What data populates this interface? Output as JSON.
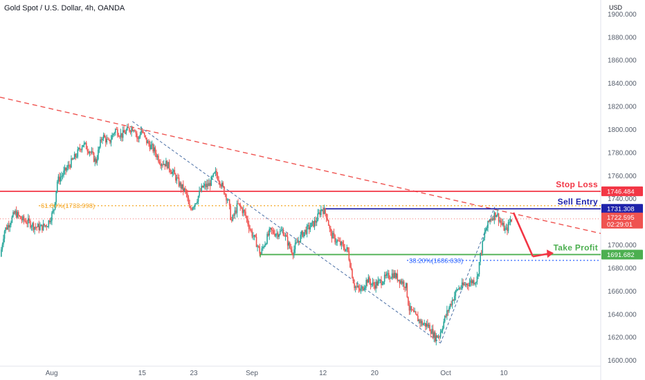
{
  "header": {
    "title": "Gold Spot / U.S. Dollar, 4h, OANDA",
    "currency": "USD"
  },
  "colors": {
    "up": "#26a69a",
    "down": "#ef5350",
    "stop": "#f23645",
    "entry": "#1e22aa",
    "profit": "#4caf50",
    "fib_upper": "#f5a623",
    "fib_lower": "#2962ff",
    "trend": "#ef5350",
    "channel": "#4a6fa5"
  },
  "chart_data": {
    "type": "candlestick",
    "title": "Gold Spot / U.S. Dollar, 4h, OANDA",
    "ylabel": "USD",
    "ylim": [
      1595,
      1905
    ],
    "yticks": [
      "1600.000",
      "1620.000",
      "1640.000",
      "1660.000",
      "1680.000",
      "1700.000",
      "1720.000",
      "1740.000",
      "1760.000",
      "1780.000",
      "1800.000",
      "1820.000",
      "1840.000",
      "1860.000",
      "1880.000",
      "1900.000"
    ],
    "xticks": [
      {
        "label": "Aug",
        "d": 0
      },
      {
        "label": "15",
        "d": 14
      },
      {
        "label": "23",
        "d": 22
      },
      {
        "label": "Sep",
        "d": 31
      },
      {
        "label": "12",
        "d": 42
      },
      {
        "label": "20",
        "d": 50
      },
      {
        "label": "Oct",
        "d": 61
      },
      {
        "label": "10",
        "d": 70
      }
    ],
    "xlim": [
      -8,
      85
    ],
    "price_path": [
      [
        -7.8,
        1690
      ],
      [
        -7.2,
        1712
      ],
      [
        -6.5,
        1718
      ],
      [
        -5.5,
        1728
      ],
      [
        -4.5,
        1722
      ],
      [
        -3.5,
        1720
      ],
      [
        -2.5,
        1716
      ],
      [
        -1.5,
        1715
      ],
      [
        -0.5,
        1718
      ],
      [
        0.5,
        1730
      ],
      [
        1.0,
        1755
      ],
      [
        2.0,
        1762
      ],
      [
        3.0,
        1770
      ],
      [
        4.0,
        1778
      ],
      [
        5.0,
        1788
      ],
      [
        6.0,
        1782
      ],
      [
        7.0,
        1772
      ],
      [
        8.0,
        1795
      ],
      [
        9.0,
        1788
      ],
      [
        10.0,
        1800
      ],
      [
        11.0,
        1795
      ],
      [
        12.0,
        1800
      ],
      [
        13.0,
        1802
      ],
      [
        13.5,
        1790
      ],
      [
        14.0,
        1800
      ],
      [
        14.8,
        1790
      ],
      [
        16.0,
        1782
      ],
      [
        17.0,
        1772
      ],
      [
        18.0,
        1770
      ],
      [
        19.0,
        1762
      ],
      [
        20.0,
        1752
      ],
      [
        21.0,
        1745
      ],
      [
        21.5,
        1730
      ],
      [
        22.5,
        1738
      ],
      [
        23.5,
        1750
      ],
      [
        24.5,
        1752
      ],
      [
        25.5,
        1762
      ],
      [
        26.0,
        1758
      ],
      [
        27.0,
        1745
      ],
      [
        27.5,
        1738
      ],
      [
        28.0,
        1720
      ],
      [
        29.0,
        1735
      ],
      [
        30.0,
        1728
      ],
      [
        31.0,
        1712
      ],
      [
        32.0,
        1700
      ],
      [
        32.5,
        1692
      ],
      [
        33.0,
        1700
      ],
      [
        34.0,
        1712
      ],
      [
        35.0,
        1710
      ],
      [
        36.0,
        1712
      ],
      [
        37.0,
        1698
      ],
      [
        37.5,
        1694
      ],
      [
        38.0,
        1700
      ],
      [
        39.0,
        1710
      ],
      [
        40.0,
        1715
      ],
      [
        41.0,
        1720
      ],
      [
        42.0,
        1732
      ],
      [
        42.8,
        1725
      ],
      [
        43.3,
        1710
      ],
      [
        44.0,
        1705
      ],
      [
        45.0,
        1700
      ],
      [
        46.0,
        1695
      ],
      [
        46.5,
        1680
      ],
      [
        47.0,
        1665
      ],
      [
        48.0,
        1660
      ],
      [
        49.0,
        1670
      ],
      [
        50.0,
        1665
      ],
      [
        51.0,
        1668
      ],
      [
        52.0,
        1672
      ],
      [
        53.0,
        1675
      ],
      [
        54.0,
        1670
      ],
      [
        55.0,
        1665
      ],
      [
        55.5,
        1645
      ],
      [
        56.5,
        1638
      ],
      [
        57.5,
        1632
      ],
      [
        58.5,
        1630
      ],
      [
        59.5,
        1620
      ],
      [
        60.2,
        1622
      ],
      [
        61.0,
        1636
      ],
      [
        62.0,
        1650
      ],
      [
        63.0,
        1662
      ],
      [
        64.0,
        1665
      ],
      [
        65.0,
        1668
      ],
      [
        66.0,
        1670
      ],
      [
        66.5,
        1690
      ],
      [
        67.2,
        1710
      ],
      [
        68.0,
        1722
      ],
      [
        69.0,
        1728
      ],
      [
        69.8,
        1718
      ],
      [
        70.5,
        1712
      ],
      [
        71.2,
        1722
      ]
    ],
    "levels": [
      {
        "label": "Stop Loss",
        "value": "1746.484",
        "price": 1746.484
      },
      {
        "label": "Sell Entry",
        "value": "1731.308",
        "price": 1731.308
      },
      {
        "label": "Take Profit",
        "value": "1691.682",
        "price": 1691.682
      }
    ],
    "current_price": {
      "value": "1722.595",
      "countdown": "02:29:01",
      "price": 1722.595
    },
    "fib": [
      {
        "label": "61.80%(1733.998)",
        "price": 1733.998
      },
      {
        "label": "38.20%(1686.630)",
        "price": 1686.63
      }
    ]
  }
}
